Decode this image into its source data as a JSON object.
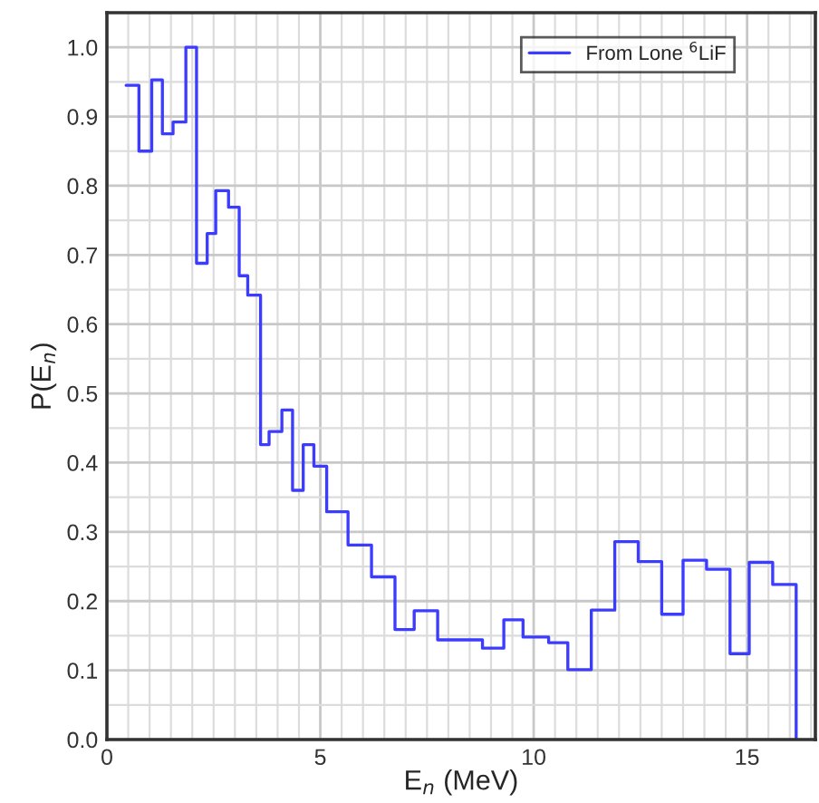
{
  "chart_data": {
    "type": "step",
    "xlabel": "E$_{n}$ (MeV)",
    "ylabel": "P(E$_{n}$)",
    "series": [
      {
        "name": "From Lone $^{6}$LiF",
        "color": "#3c3cff",
        "x": [
          0.45,
          0.75,
          1.05,
          1.3,
          1.55,
          1.85,
          2.1,
          2.35,
          2.55,
          2.85,
          3.1,
          3.3,
          3.6,
          3.8,
          4.1,
          4.35,
          4.6,
          4.85,
          5.15,
          5.65,
          6.2,
          6.75,
          7.2,
          7.75,
          8.25,
          8.8,
          9.3,
          9.75,
          10.35,
          10.8,
          11.35,
          11.9,
          12.45,
          13.0,
          13.5,
          14.05,
          14.6,
          15.05,
          15.6,
          16.15
        ],
        "values": [
          0.945,
          0.85,
          0.953,
          0.875,
          0.892,
          1.0,
          0.688,
          0.731,
          0.793,
          0.769,
          0.67,
          0.642,
          0.426,
          0.445,
          0.476,
          0.36,
          0.426,
          0.395,
          0.329,
          0.281,
          0.235,
          0.159,
          0.186,
          0.144,
          0.144,
          0.132,
          0.173,
          0.148,
          0.14,
          0.101,
          0.187,
          0.286,
          0.257,
          0.181,
          0.259,
          0.246,
          0.124,
          0.256,
          0.224,
          0.0
        ]
      }
    ],
    "xlim": [
      0,
      16.6
    ],
    "ylim": [
      0,
      1.05
    ],
    "xticks": [
      0,
      5,
      10,
      15
    ],
    "yticks": [
      {
        "value": 0,
        "label": "0.0"
      },
      0.1,
      0.2,
      0.3,
      0.4,
      0.5,
      0.6,
      0.7,
      0.8,
      0.9,
      {
        "value": 1,
        "label": "1.0"
      }
    ],
    "grid": true,
    "legend": "top right"
  }
}
